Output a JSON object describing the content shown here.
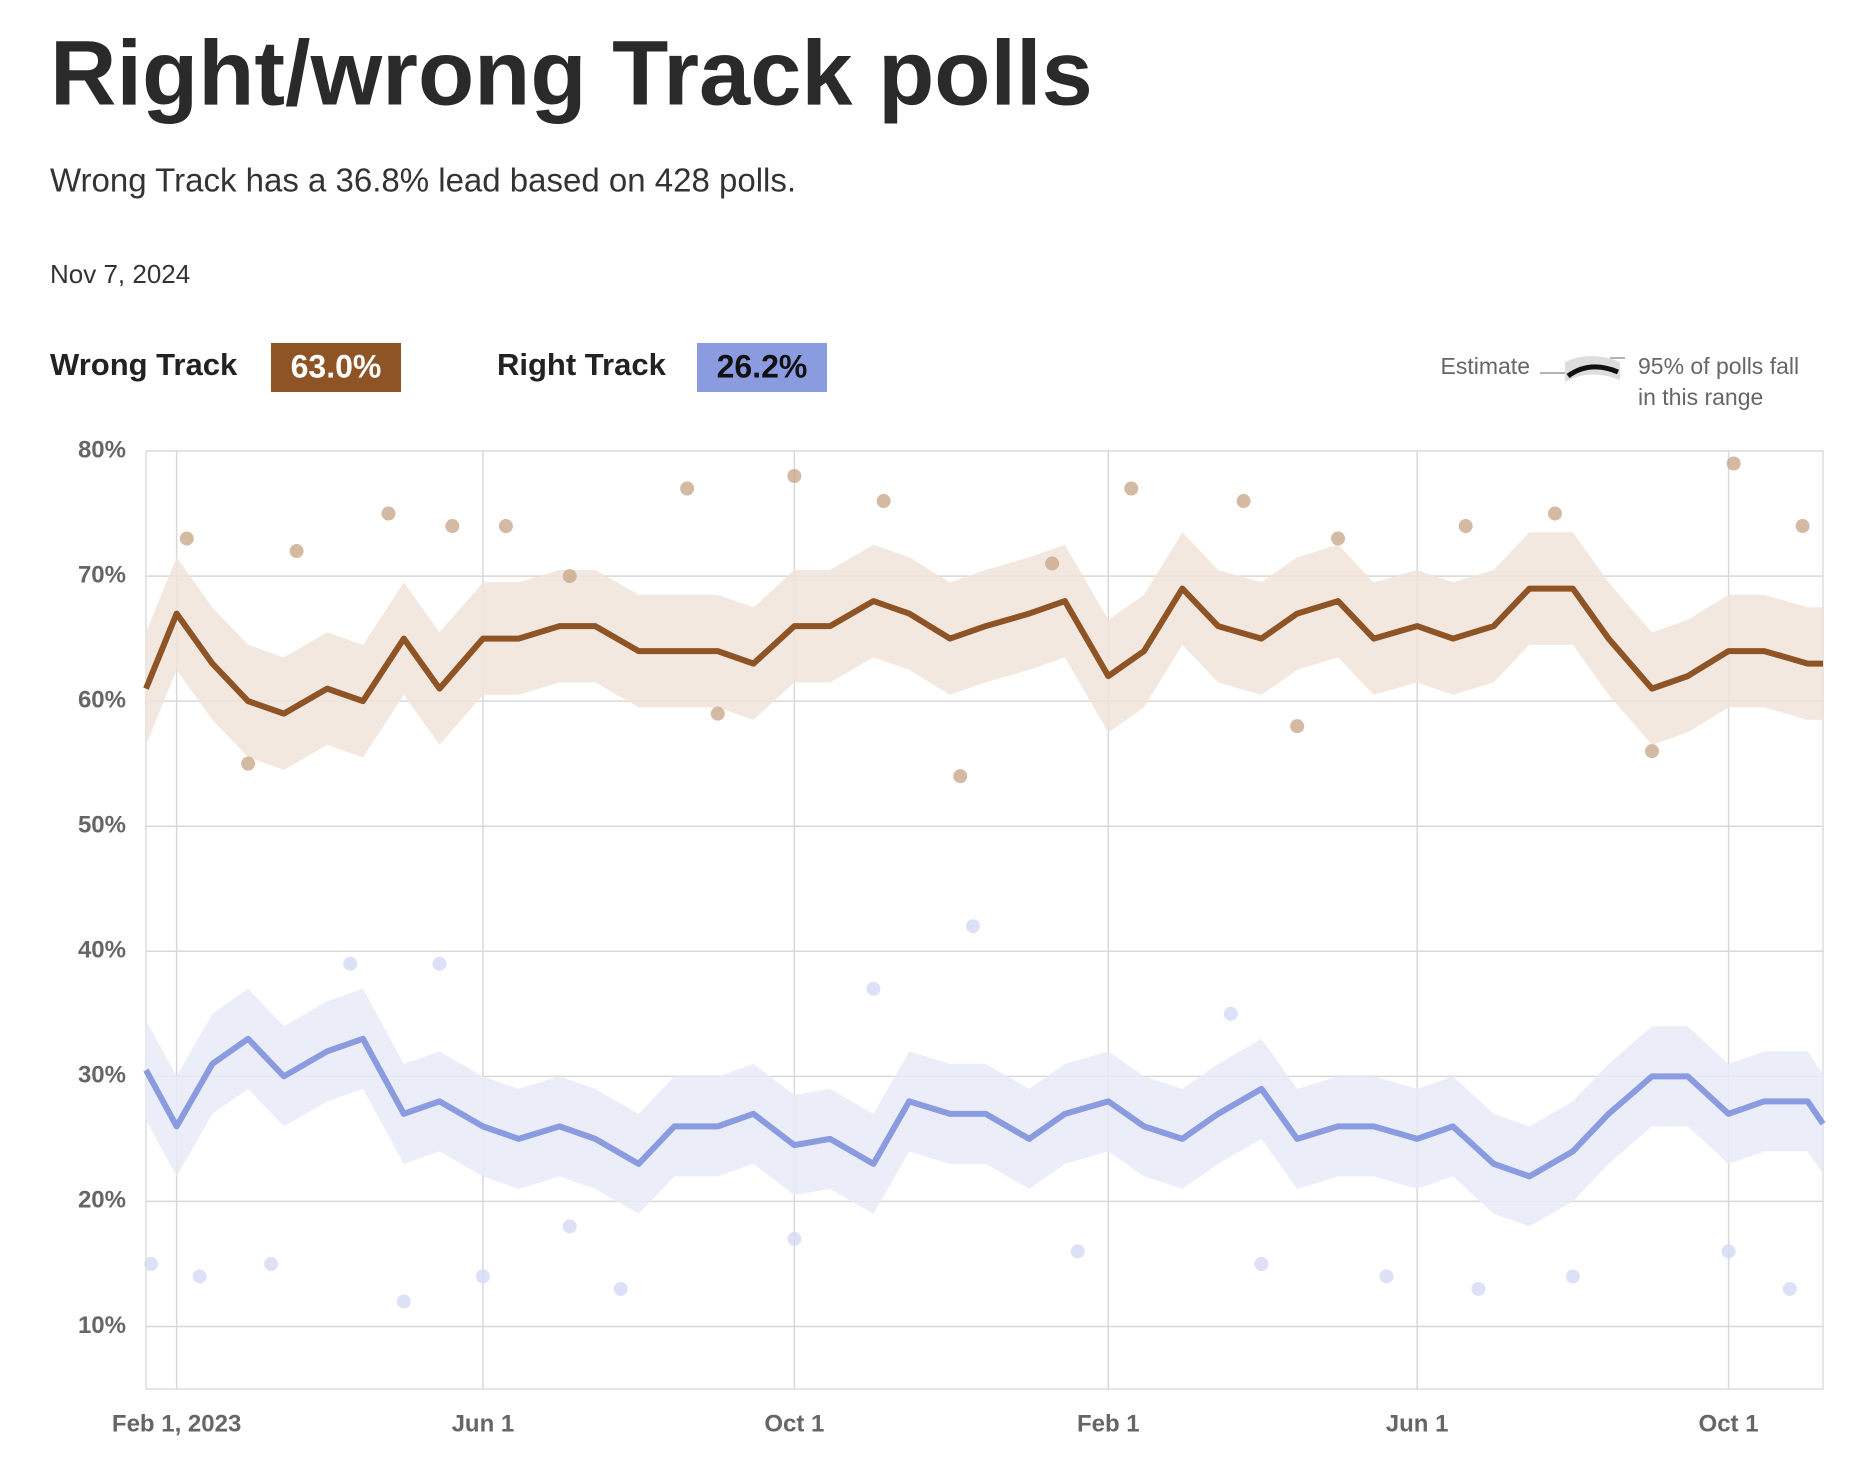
{
  "header": {
    "title": "Right/wrong Track polls",
    "subtitle": "Wrong Track has a 36.8% lead based on 428 polls.",
    "date": "Nov 7, 2024"
  },
  "summary": [
    {
      "name": "Wrong Track",
      "label": "63.0%"
    },
    {
      "name": "Right Track",
      "label": "26.2%"
    }
  ],
  "legend": {
    "estimate": "Estimate",
    "range": "95% of polls fall",
    "range2": "in this range"
  },
  "chart_data": {
    "type": "line",
    "x": [
      "2023-01-20",
      "2023-02-01",
      "2023-02-15",
      "2023-03-01",
      "2023-03-15",
      "2023-04-01",
      "2023-04-15",
      "2023-05-01",
      "2023-05-15",
      "2023-06-01",
      "2023-06-15",
      "2023-07-01",
      "2023-07-15",
      "2023-08-01",
      "2023-08-15",
      "2023-09-01",
      "2023-09-15",
      "2023-10-01",
      "2023-10-15",
      "2023-11-01",
      "2023-11-15",
      "2023-12-01",
      "2023-12-15",
      "2024-01-01",
      "2024-01-15",
      "2024-02-01",
      "2024-02-15",
      "2024-03-01",
      "2024-03-15",
      "2024-04-01",
      "2024-04-15",
      "2024-05-01",
      "2024-05-15",
      "2024-06-01",
      "2024-06-15",
      "2024-07-01",
      "2024-07-15",
      "2024-08-01",
      "2024-08-15",
      "2024-09-01",
      "2024-09-15",
      "2024-10-01",
      "2024-10-15",
      "2024-11-01",
      "2024-11-07"
    ],
    "series": [
      {
        "name": "Wrong Track",
        "color": "#8f5425",
        "band_color": "#f0e4da",
        "poll_color": "#c9a88c",
        "values": [
          61,
          67,
          63,
          60,
          59,
          61,
          60,
          65,
          61,
          65,
          65,
          66,
          66,
          64,
          64,
          64,
          63,
          66,
          66,
          68,
          67,
          65,
          66,
          67,
          68,
          62,
          64,
          69,
          66,
          65,
          67,
          68,
          65,
          66,
          65,
          66,
          69,
          69,
          65,
          61,
          62,
          64,
          64,
          63,
          63
        ],
        "band_upper": [
          65.5,
          71.5,
          67.5,
          64.5,
          63.5,
          65.5,
          64.5,
          69.5,
          65.5,
          69.5,
          69.5,
          70.5,
          70.5,
          68.5,
          68.5,
          68.5,
          67.5,
          70.5,
          70.5,
          72.5,
          71.5,
          69.5,
          70.5,
          71.5,
          72.5,
          66.5,
          68.5,
          73.5,
          70.5,
          69.5,
          71.5,
          72.5,
          69.5,
          70.5,
          69.5,
          70.5,
          73.5,
          73.5,
          69.5,
          65.5,
          66.5,
          68.5,
          68.5,
          67.5,
          67.5
        ],
        "band_lower": [
          56.5,
          62.5,
          58.5,
          55.5,
          54.5,
          56.5,
          55.5,
          60.5,
          56.5,
          60.5,
          60.5,
          61.5,
          61.5,
          59.5,
          59.5,
          59.5,
          58.5,
          61.5,
          61.5,
          63.5,
          62.5,
          60.5,
          61.5,
          62.5,
          63.5,
          57.5,
          59.5,
          64.5,
          61.5,
          60.5,
          62.5,
          63.5,
          60.5,
          61.5,
          60.5,
          61.5,
          64.5,
          64.5,
          60.5,
          56.5,
          57.5,
          59.5,
          59.5,
          58.5,
          58.5
        ],
        "polls_x": [
          "2023-02-05",
          "2023-03-20",
          "2023-04-25",
          "2023-05-20",
          "2023-06-10",
          "2023-07-05",
          "2023-08-20",
          "2023-10-01",
          "2023-11-05",
          "2023-12-05",
          "2024-01-10",
          "2024-02-10",
          "2024-03-25",
          "2024-05-01",
          "2024-06-20",
          "2024-07-25",
          "2024-09-01",
          "2024-10-03",
          "2024-10-30",
          "2023-09-01",
          "2023-03-01",
          "2024-04-15"
        ],
        "polls": [
          73,
          72,
          75,
          74,
          74,
          70,
          77,
          78,
          76,
          54,
          71,
          77,
          76,
          73,
          74,
          75,
          56,
          79,
          74,
          59,
          55,
          58
        ]
      },
      {
        "name": "Right Track",
        "color": "#8a9be0",
        "band_color": "#e8ebf8",
        "poll_color": "#d3daf5",
        "values": [
          30.5,
          26,
          31,
          33,
          30,
          32,
          33,
          27,
          28,
          26,
          25,
          26,
          25,
          23,
          26,
          26,
          27,
          24.5,
          25,
          23,
          28,
          27,
          27,
          25,
          27,
          28,
          26,
          25,
          27,
          29,
          25,
          26,
          26,
          25,
          26,
          23,
          22,
          24,
          27,
          30,
          30,
          27,
          28,
          28,
          26.2
        ],
        "band_upper": [
          34.5,
          30,
          35,
          37,
          34,
          36,
          37,
          31,
          32,
          30,
          29,
          30,
          29,
          27,
          30,
          30,
          31,
          28.5,
          29,
          27,
          32,
          31,
          31,
          29,
          31,
          32,
          30,
          29,
          31,
          33,
          29,
          30,
          30,
          29,
          30,
          27,
          26,
          28,
          31,
          34,
          34,
          31,
          32,
          32,
          30.2
        ],
        "band_lower": [
          26.5,
          22,
          27,
          29,
          26,
          28,
          29,
          23,
          24,
          22,
          21,
          22,
          21,
          19,
          22,
          22,
          23,
          20.5,
          21,
          19,
          24,
          23,
          23,
          21,
          23,
          24,
          22,
          21,
          23,
          25,
          21,
          22,
          22,
          21,
          22,
          19,
          18,
          20,
          23,
          26,
          26,
          23,
          24,
          24,
          22.2
        ],
        "polls_x": [
          "2023-01-22",
          "2023-02-10",
          "2023-03-10",
          "2023-04-10",
          "2023-05-01",
          "2023-05-15",
          "2023-06-01",
          "2023-07-05",
          "2023-07-25",
          "2023-10-01",
          "2023-12-10",
          "2024-01-20",
          "2024-04-01",
          "2024-05-20",
          "2024-06-25",
          "2024-08-01",
          "2024-10-01",
          "2024-10-25",
          "2023-11-01",
          "2024-03-20"
        ],
        "polls": [
          15,
          14,
          15,
          39,
          12,
          39,
          14,
          18,
          13,
          17,
          42,
          16,
          15,
          14,
          13,
          14,
          16,
          13,
          37,
          35
        ]
      }
    ],
    "xlim": [
      "2023-01-20",
      "2024-11-07"
    ],
    "xticks": [
      {
        "value": "2023-02-01",
        "label": "Feb 1, 2023"
      },
      {
        "value": "2023-06-01",
        "label": "Jun 1"
      },
      {
        "value": "2023-10-01",
        "label": "Oct 1"
      },
      {
        "value": "2024-02-01",
        "label": "Feb 1"
      },
      {
        "value": "2024-06-01",
        "label": "Jun 1"
      },
      {
        "value": "2024-10-01",
        "label": "Oct 1"
      }
    ],
    "ylim": [
      5,
      80
    ],
    "yticks": [
      {
        "value": 10,
        "label": "10%"
      },
      {
        "value": 20,
        "label": "20%"
      },
      {
        "value": 30,
        "label": "30%"
      },
      {
        "value": 40,
        "label": "40%"
      },
      {
        "value": 50,
        "label": "50%"
      },
      {
        "value": 60,
        "label": "60%"
      },
      {
        "value": 70,
        "label": "70%"
      },
      {
        "value": 80,
        "label": "80%"
      }
    ],
    "grid": true
  }
}
